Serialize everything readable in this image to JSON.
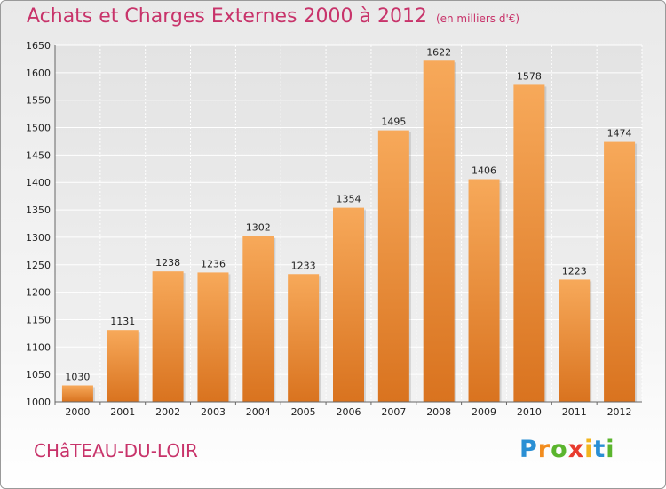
{
  "title": "Achats et Charges Externes 2000 à 2012",
  "title_unit": "(en milliers d'€)",
  "commune": "CHâTEAU-DU-LOIR",
  "logo": {
    "letters": [
      "P",
      "r",
      "o",
      "x",
      "i",
      "t",
      "i"
    ],
    "colors": [
      "#2a8fd4",
      "#f28c1e",
      "#5bb52e",
      "#e83b2e",
      "#f2b51e",
      "#2a8fd4",
      "#5bb52e"
    ]
  },
  "colors": {
    "bar_top": "#f7a95a",
    "bar_bottom": "#d9731f",
    "title": "#c8336a"
  },
  "chart_data": {
    "type": "bar",
    "categories": [
      "2000",
      "2001",
      "2002",
      "2003",
      "2004",
      "2005",
      "2006",
      "2007",
      "2008",
      "2009",
      "2010",
      "2011",
      "2012"
    ],
    "values": [
      1030,
      1131,
      1238,
      1236,
      1302,
      1233,
      1354,
      1495,
      1622,
      1406,
      1578,
      1223,
      1474
    ],
    "ylim": [
      1000,
      1650
    ],
    "yticks": [
      1000,
      1050,
      1100,
      1150,
      1200,
      1250,
      1300,
      1350,
      1400,
      1450,
      1500,
      1550,
      1600,
      1650
    ],
    "grid": true,
    "data_labels": true
  }
}
